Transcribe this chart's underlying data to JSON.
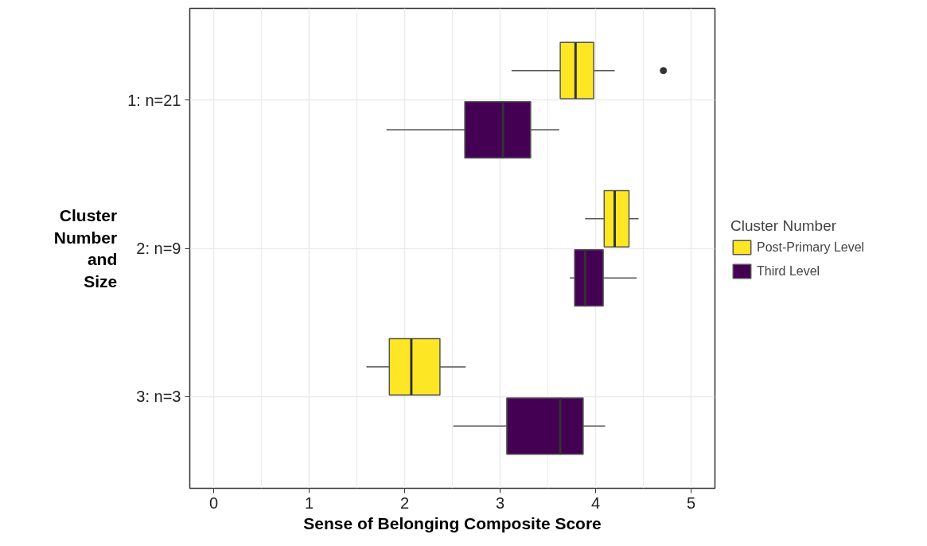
{
  "chart_data": {
    "type": "box",
    "orientation": "horizontal",
    "xlabel": "Sense of Belonging Composite Score",
    "ylabel": "Cluster Number and Size",
    "legend_title": "Cluster Number",
    "categories": [
      "1: n=21",
      "2: n=9",
      "3: n=3"
    ],
    "series": [
      {
        "name": "Post-Primary Level",
        "color": "#fde725",
        "boxes": [
          {
            "low": 3.12,
            "q1": 3.63,
            "median": 3.79,
            "q3": 3.98,
            "high": 4.2,
            "outliers": [
              4.71
            ]
          },
          {
            "low": 3.89,
            "q1": 4.09,
            "median": 4.2,
            "q3": 4.35,
            "high": 4.45
          },
          {
            "low": 1.6,
            "q1": 1.84,
            "median": 2.07,
            "q3": 2.37,
            "high": 2.64
          }
        ]
      },
      {
        "name": "Third Level",
        "color": "#440154",
        "boxes": [
          {
            "low": 1.81,
            "q1": 2.63,
            "median": 3.03,
            "q3": 3.32,
            "high": 3.62
          },
          {
            "low": 3.73,
            "q1": 3.78,
            "median": 3.89,
            "q3": 4.08,
            "high": 4.43
          },
          {
            "low": 2.51,
            "q1": 3.07,
            "median": 3.63,
            "q3": 3.87,
            "high": 4.1
          }
        ]
      }
    ],
    "xlim": [
      -0.25,
      5.25
    ],
    "xticks": [
      0,
      1,
      2,
      3,
      4,
      5
    ],
    "grid": true,
    "legend": "right"
  }
}
